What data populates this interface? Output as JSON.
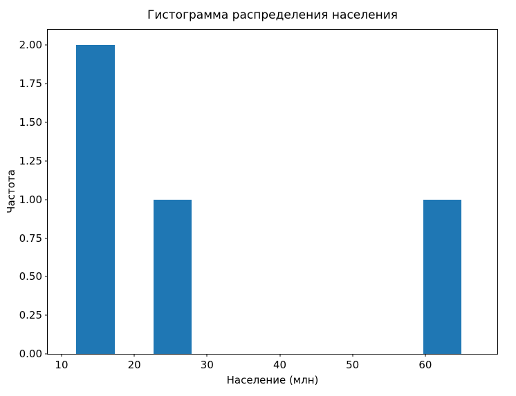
{
  "chart_data": {
    "type": "bar",
    "subtype": "histogram",
    "title": "Гистограмма распределения населения",
    "xlabel": "Население (млн)",
    "ylabel": "Частота",
    "bar_color": "#1f77b4",
    "axis_color": "#000000",
    "background_color": "#ffffff",
    "grid": false,
    "legend": null,
    "xlim": [
      8.1,
      69.9
    ],
    "ylim": [
      0,
      2.1
    ],
    "x_ticks": [
      {
        "value": 10,
        "label": "10"
      },
      {
        "value": 20,
        "label": "20"
      },
      {
        "value": 30,
        "label": "30"
      },
      {
        "value": 40,
        "label": "40"
      },
      {
        "value": 50,
        "label": "50"
      },
      {
        "value": 60,
        "label": "60"
      }
    ],
    "y_ticks": [
      {
        "value": 0.0,
        "label": "0.00"
      },
      {
        "value": 0.25,
        "label": "0.25"
      },
      {
        "value": 0.5,
        "label": "0.50"
      },
      {
        "value": 0.75,
        "label": "0.75"
      },
      {
        "value": 1.0,
        "label": "1.00"
      },
      {
        "value": 1.25,
        "label": "1.25"
      },
      {
        "value": 1.5,
        "label": "1.50"
      },
      {
        "value": 1.75,
        "label": "1.75"
      },
      {
        "value": 2.0,
        "label": "2.00"
      }
    ],
    "bins": [
      {
        "start": 12.0,
        "end": 17.3,
        "count": 2
      },
      {
        "start": 22.6,
        "end": 27.9,
        "count": 1
      },
      {
        "start": 59.7,
        "end": 65.0,
        "count": 1
      }
    ]
  }
}
